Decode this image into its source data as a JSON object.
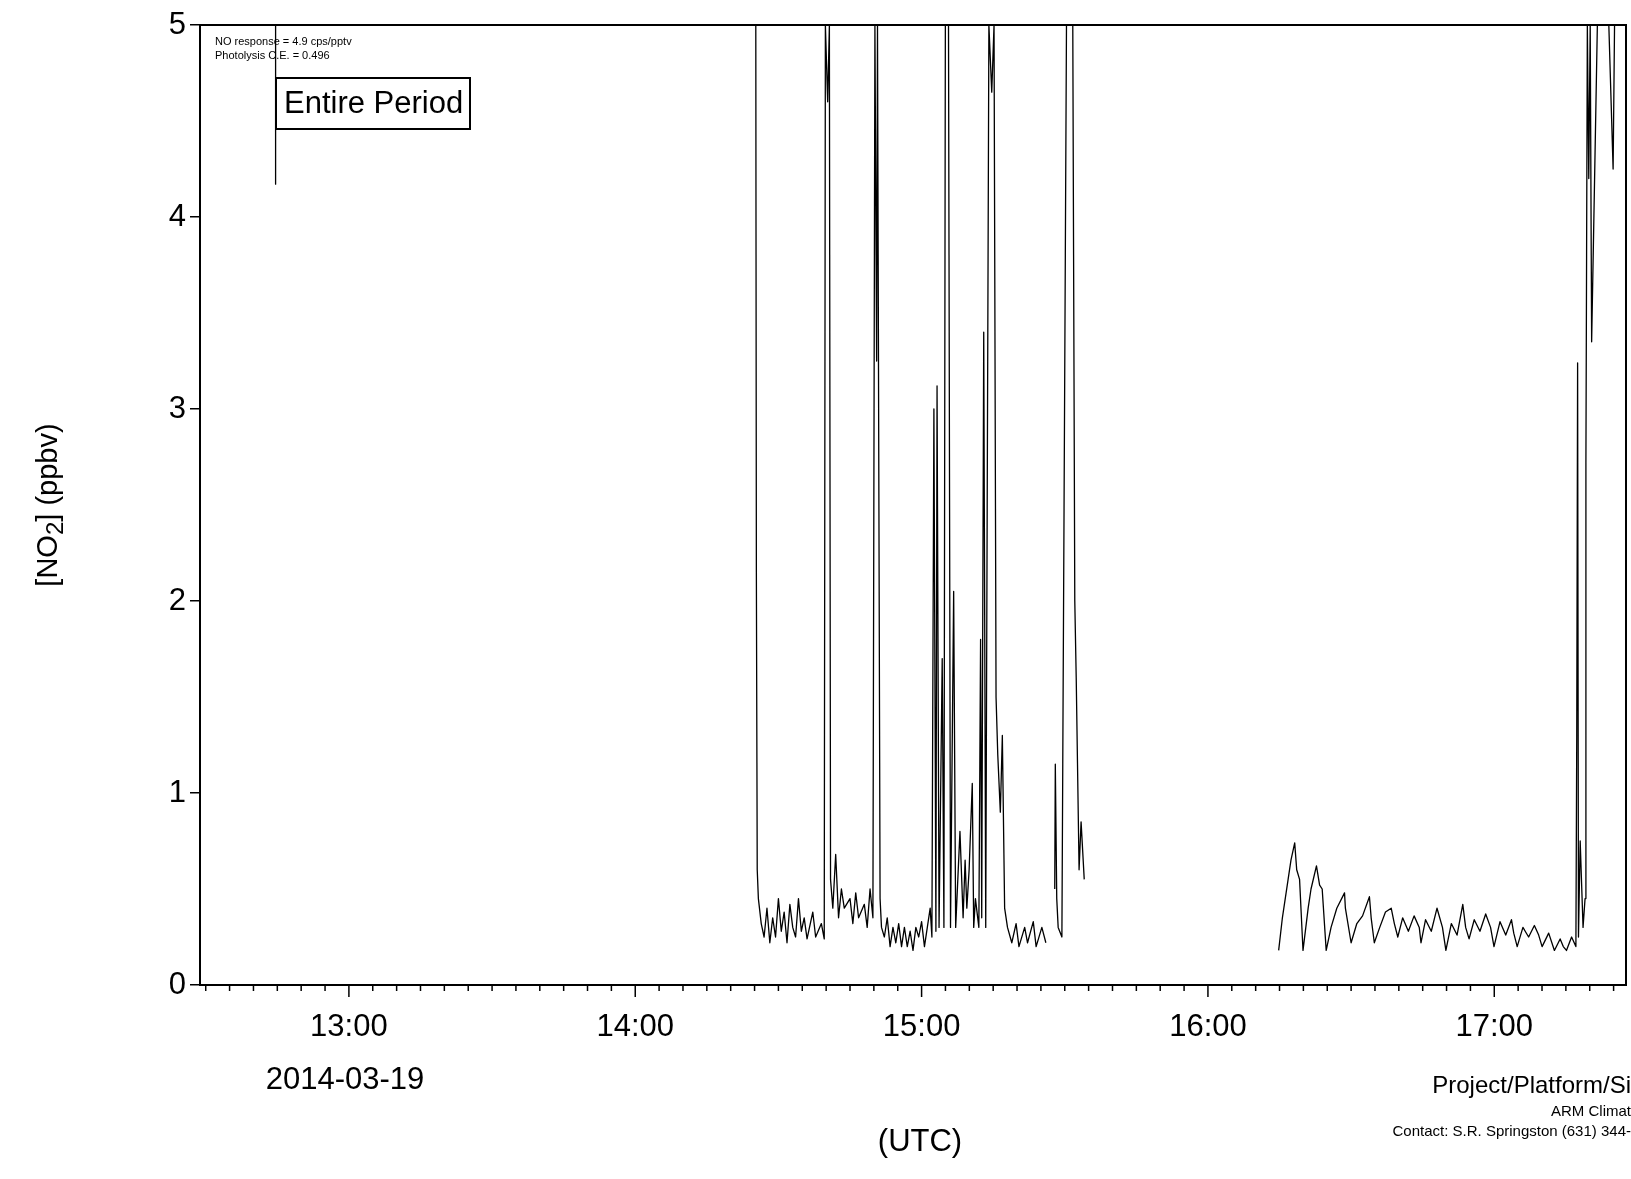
{
  "chart_data": {
    "type": "line",
    "ylabel": "[NO$_{2}$] (ppbv)",
    "xlabel": "(UTC)",
    "annotations": [
      "NO response = 4.9 cps/pptv",
      "Photolysis C.E. = 0.496",
      "Entire Period",
      "2014-03-19",
      "Project/Platform/Si",
      "ARM Climat",
      "Contact:  S.R. Springston (631) 344-"
    ],
    "xlim": [
      12.48,
      17.46
    ],
    "ylim": [
      0,
      5
    ],
    "yticks": [
      0,
      1,
      2,
      3,
      4,
      5
    ],
    "xticks": [
      {
        "value": 12.5,
        "label": null
      },
      {
        "value": 12.5833,
        "label": null
      },
      {
        "value": 12.6667,
        "label": null
      },
      {
        "value": 12.75,
        "label": null
      },
      {
        "value": 12.8333,
        "label": null
      },
      {
        "value": 12.9167,
        "label": null
      },
      {
        "value": 13,
        "label": "13:00"
      },
      {
        "value": 13.0833,
        "label": null
      },
      {
        "value": 13.1667,
        "label": null
      },
      {
        "value": 13.25,
        "label": null
      },
      {
        "value": 13.3333,
        "label": null
      },
      {
        "value": 13.4167,
        "label": null
      },
      {
        "value": 13.5,
        "label": null
      },
      {
        "value": 13.5833,
        "label": null
      },
      {
        "value": 13.6667,
        "label": null
      },
      {
        "value": 13.75,
        "label": null
      },
      {
        "value": 13.8333,
        "label": null
      },
      {
        "value": 13.9167,
        "label": null
      },
      {
        "value": 14,
        "label": "14:00"
      },
      {
        "value": 14.0833,
        "label": null
      },
      {
        "value": 14.1667,
        "label": null
      },
      {
        "value": 14.25,
        "label": null
      },
      {
        "value": 14.3333,
        "label": null
      },
      {
        "value": 14.4167,
        "label": null
      },
      {
        "value": 14.5,
        "label": null
      },
      {
        "value": 14.5833,
        "label": null
      },
      {
        "value": 14.6667,
        "label": null
      },
      {
        "value": 14.75,
        "label": null
      },
      {
        "value": 14.8333,
        "label": null
      },
      {
        "value": 14.9167,
        "label": null
      },
      {
        "value": 15,
        "label": "15:00"
      },
      {
        "value": 15.0833,
        "label": null
      },
      {
        "value": 15.1667,
        "label": null
      },
      {
        "value": 15.25,
        "label": null
      },
      {
        "value": 15.3333,
        "label": null
      },
      {
        "value": 15.4167,
        "label": null
      },
      {
        "value": 15.5,
        "label": null
      },
      {
        "value": 15.5833,
        "label": null
      },
      {
        "value": 15.6667,
        "label": null
      },
      {
        "value": 15.75,
        "label": null
      },
      {
        "value": 15.8333,
        "label": null
      },
      {
        "value": 15.9167,
        "label": null
      },
      {
        "value": 16,
        "label": "16:00"
      },
      {
        "value": 16.0833,
        "label": null
      },
      {
        "value": 16.1667,
        "label": null
      },
      {
        "value": 16.25,
        "label": null
      },
      {
        "value": 16.3333,
        "label": null
      },
      {
        "value": 16.4167,
        "label": null
      },
      {
        "value": 16.5,
        "label": null
      },
      {
        "value": 16.5833,
        "label": null
      },
      {
        "value": 16.6667,
        "label": null
      },
      {
        "value": 16.75,
        "label": null
      },
      {
        "value": 16.8333,
        "label": null
      },
      {
        "value": 16.9167,
        "label": null
      },
      {
        "value": 17,
        "label": "17:00"
      },
      {
        "value": 17.0833,
        "label": null
      },
      {
        "value": 17.1667,
        "label": null
      },
      {
        "value": 17.25,
        "label": null
      },
      {
        "value": 17.3333,
        "label": null
      },
      {
        "value": 17.4167,
        "label": null
      }
    ],
    "color": "#000000",
    "x": [
      12.743,
      12.744,
      12.75,
      14.421,
      14.423,
      14.426,
      14.43,
      14.44,
      14.45,
      14.46,
      14.47,
      14.48,
      14.49,
      14.5,
      14.51,
      14.52,
      14.53,
      14.54,
      14.55,
      14.56,
      14.57,
      14.58,
      14.59,
      14.6,
      14.62,
      14.63,
      14.65,
      14.66,
      14.664,
      14.672,
      14.678,
      14.682,
      14.69,
      14.7,
      14.71,
      14.72,
      14.73,
      14.75,
      14.76,
      14.77,
      14.78,
      14.8,
      14.81,
      14.82,
      14.83,
      14.837,
      14.843,
      14.846,
      14.855,
      14.86,
      14.87,
      14.88,
      14.89,
      14.9,
      14.91,
      14.92,
      14.93,
      14.94,
      14.95,
      14.96,
      14.97,
      14.98,
      14.99,
      15,
      15.01,
      15.02,
      15.03,
      15.036,
      15.043,
      15.05,
      15.054,
      15.061,
      15.072,
      15.078,
      15.083,
      15.094,
      15.101,
      15.112,
      15.119,
      15.134,
      15.145,
      15.152,
      15.158,
      15.166,
      15.177,
      15.182,
      15.188,
      15.2,
      15.206,
      15.21,
      15.217,
      15.224,
      15.235,
      15.245,
      15.253,
      15.26,
      15.266,
      15.275,
      15.282,
      15.29,
      15.3,
      15.315,
      15.33,
      15.34,
      15.36,
      15.37,
      15.39,
      15.4,
      15.42,
      15.434,
      15.45,
      15.465,
      15.467,
      15.472,
      15.477,
      15.49,
      15.506,
      15.52,
      15.528,
      15.535,
      15.54,
      15.55,
      15.557,
      15.568,
      15.6,
      16.247,
      16.26,
      16.28,
      16.29,
      16.303,
      16.31,
      16.32,
      16.332,
      16.35,
      16.36,
      16.379,
      16.39,
      16.399,
      16.413,
      16.43,
      16.45,
      16.477,
      16.48,
      16.5,
      16.52,
      16.54,
      16.564,
      16.57,
      16.581,
      16.6,
      16.62,
      16.64,
      16.651,
      16.663,
      16.68,
      16.7,
      16.72,
      16.738,
      16.744,
      16.76,
      16.78,
      16.8,
      16.819,
      16.831,
      16.85,
      16.87,
      16.89,
      16.9,
      16.912,
      16.93,
      16.95,
      16.97,
      16.987,
      16.999,
      17.02,
      17.04,
      17.06,
      17.068,
      17.08,
      17.1,
      17.12,
      17.14,
      17.155,
      17.167,
      17.19,
      17.21,
      17.23,
      17.241,
      17.252,
      17.27,
      17.285,
      17.288,
      17.291,
      17.294,
      17.3,
      17.31,
      17.317,
      17.32,
      17.325,
      17.33,
      17.335,
      17.34,
      17.36,
      17.4,
      17.415,
      17.42,
      17.44
    ],
    "values": [
      4.17,
      5,
      null,
      5,
      2.15,
      0.6,
      0.45,
      0.32,
      0.25,
      0.4,
      0.22,
      0.35,
      0.25,
      0.45,
      0.28,
      0.38,
      0.22,
      0.42,
      0.3,
      0.25,
      0.45,
      0.28,
      0.35,
      0.24,
      0.38,
      0.25,
      0.32,
      0.24,
      5,
      4.6,
      5,
      0.55,
      0.4,
      0.68,
      0.35,
      0.5,
      0.4,
      0.45,
      0.32,
      0.48,
      0.35,
      0.42,
      0.3,
      0.5,
      0.35,
      5,
      3.25,
      5,
      0.45,
      0.3,
      0.25,
      0.35,
      0.2,
      0.3,
      0.22,
      0.32,
      0.2,
      0.3,
      0.2,
      0.28,
      0.18,
      0.3,
      0.25,
      0.33,
      0.2,
      0.3,
      0.4,
      0.25,
      3,
      0.28,
      3.12,
      0.3,
      1.7,
      0.3,
      5,
      5,
      0.3,
      2.05,
      0.3,
      0.8,
      0.35,
      0.65,
      0.4,
      0.6,
      1.05,
      0.3,
      0.45,
      0.3,
      1.8,
      0.35,
      3.4,
      0.3,
      5,
      4.65,
      5,
      1.5,
      1.2,
      0.9,
      1.3,
      0.4,
      0.3,
      0.22,
      0.32,
      0.2,
      0.3,
      0.22,
      0.33,
      0.2,
      0.3,
      0.22,
      null,
      0.5,
      1.15,
      0.45,
      0.3,
      0.25,
      5,
      5,
      5,
      2,
      1.6,
      0.6,
      0.85,
      0.55,
      null,
      0.18,
      0.35,
      0.55,
      0.65,
      0.74,
      0.6,
      0.55,
      0.18,
      0.4,
      0.5,
      0.62,
      0.52,
      0.5,
      0.18,
      0.3,
      0.4,
      0.48,
      0.4,
      0.22,
      0.32,
      0.36,
      0.46,
      0.35,
      0.22,
      0.3,
      0.38,
      0.4,
      0.32,
      0.25,
      0.35,
      0.28,
      0.36,
      0.3,
      0.22,
      0.34,
      0.28,
      0.4,
      0.3,
      0.18,
      0.32,
      0.26,
      0.42,
      0.3,
      0.24,
      0.34,
      0.28,
      0.37,
      0.3,
      0.2,
      0.33,
      0.26,
      0.34,
      0.27,
      0.2,
      0.3,
      0.25,
      0.31,
      0.26,
      0.2,
      0.27,
      0.18,
      0.24,
      0.2,
      0.18,
      0.25,
      0.2,
      1.3,
      3.24,
      0.25,
      0.75,
      0.3,
      0.45,
      2.72,
      5,
      4.2,
      5,
      3.35,
      5,
      5,
      4.25,
      5,
      5
    ]
  }
}
